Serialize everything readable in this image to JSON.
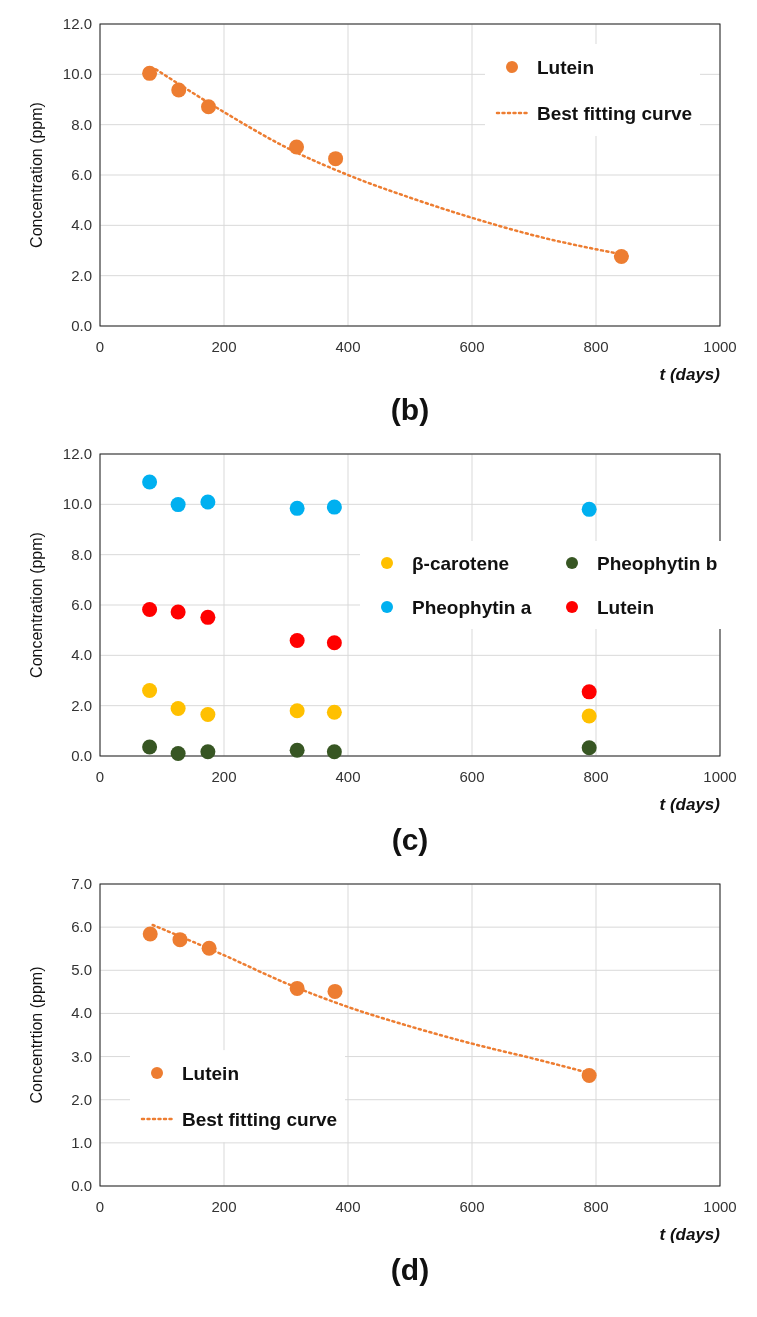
{
  "chart_data": [
    {
      "type": "scatter",
      "title": "(b)",
      "xlabel": "t (days)",
      "ylabel": "Concentration (ppm)",
      "xlim": [
        0,
        1000
      ],
      "ylim": [
        0,
        12
      ],
      "xticks": [
        0,
        200,
        400,
        600,
        800,
        1000
      ],
      "yticks": [
        {
          "value": 0,
          "label": "0.0"
        },
        {
          "value": 2,
          "label": "2.0"
        },
        {
          "value": 4,
          "label": "4.0"
        },
        {
          "value": 6,
          "label": "6.0"
        },
        {
          "value": 8,
          "label": "8.0"
        },
        {
          "value": 10,
          "label": "10.0"
        },
        {
          "value": 12,
          "label": "12.0"
        }
      ],
      "grid": true,
      "legend": "top right",
      "x": [
        80,
        127,
        175,
        317,
        380,
        841
      ],
      "series": [
        {
          "name": "Lutein",
          "marker": "circle",
          "color": "#ed7d31",
          "values": [
            10.04,
            9.38,
            8.71,
            7.11,
            6.65,
            2.76
          ]
        },
        {
          "name": "Best fitting curve",
          "type": "line",
          "marker": "none",
          "line_style": "dotted",
          "color": "#ed7d31",
          "x": [
            90,
            200,
            300,
            400,
            500,
            600,
            700,
            841
          ],
          "values": [
            10.2,
            8.5,
            7.1,
            6.0,
            5.1,
            4.3,
            3.6,
            2.85
          ]
        }
      ]
    },
    {
      "type": "scatter",
      "title": "(c)",
      "xlabel": "t (days)",
      "ylabel": "Concentration (ppm)",
      "xlim": [
        0,
        1000
      ],
      "ylim": [
        0,
        12
      ],
      "xticks": [
        0,
        200,
        400,
        600,
        800,
        1000
      ],
      "yticks": [
        {
          "value": 0,
          "label": "0.0"
        },
        {
          "value": 2,
          "label": "2.0"
        },
        {
          "value": 4,
          "label": "4.0"
        },
        {
          "value": 6,
          "label": "6.0"
        },
        {
          "value": 8,
          "label": "8.0"
        },
        {
          "value": 10,
          "label": "10.0"
        },
        {
          "value": 12,
          "label": "12.0"
        }
      ],
      "grid": true,
      "legend": "right",
      "marker": "circle",
      "x": [
        80,
        126,
        174,
        318,
        378,
        789
      ],
      "series": [
        {
          "name": "β-carotene",
          "color": "#ffc000",
          "values": [
            2.6,
            1.89,
            1.65,
            1.8,
            1.74,
            1.59
          ]
        },
        {
          "name": "Pheophytin b",
          "color": "#375623",
          "values": [
            0.36,
            0.1,
            0.17,
            0.23,
            0.17,
            0.33
          ]
        },
        {
          "name": "Pheophytin a",
          "color": "#00b0f0",
          "values": [
            10.89,
            9.99,
            10.09,
            9.84,
            9.89,
            9.8
          ]
        },
        {
          "name": "Lutein",
          "color": "#ff0000",
          "values": [
            5.82,
            5.72,
            5.51,
            4.59,
            4.5,
            2.55
          ]
        }
      ]
    },
    {
      "type": "scatter",
      "title": "(d)",
      "xlabel": "t (days)",
      "ylabel": "Concentrtion (ppm)",
      "xlim": [
        0,
        1000
      ],
      "ylim": [
        0,
        7
      ],
      "xticks": [
        0,
        200,
        400,
        600,
        800,
        1000
      ],
      "yticks": [
        {
          "value": 0,
          "label": "0.0"
        },
        {
          "value": 1,
          "label": "1.0"
        },
        {
          "value": 2,
          "label": "2.0"
        },
        {
          "value": 3,
          "label": "3.0"
        },
        {
          "value": 4,
          "label": "4.0"
        },
        {
          "value": 5,
          "label": "5.0"
        },
        {
          "value": 6,
          "label": "6.0"
        },
        {
          "value": 7,
          "label": "7.0"
        }
      ],
      "grid": true,
      "legend": "left",
      "x": [
        81,
        129,
        176,
        318,
        379,
        789
      ],
      "series": [
        {
          "name": "Lutein",
          "marker": "circle",
          "color": "#ed7d31",
          "values": [
            5.84,
            5.71,
            5.51,
            4.58,
            4.51,
            2.56
          ]
        },
        {
          "name": "Best fitting curve",
          "type": "line",
          "marker": "none",
          "line_style": "dotted",
          "color": "#ed7d31",
          "x": [
            85,
            200,
            300,
            400,
            500,
            600,
            700,
            789
          ],
          "values": [
            6.05,
            5.35,
            4.7,
            4.15,
            3.7,
            3.3,
            2.95,
            2.62
          ]
        }
      ]
    }
  ]
}
